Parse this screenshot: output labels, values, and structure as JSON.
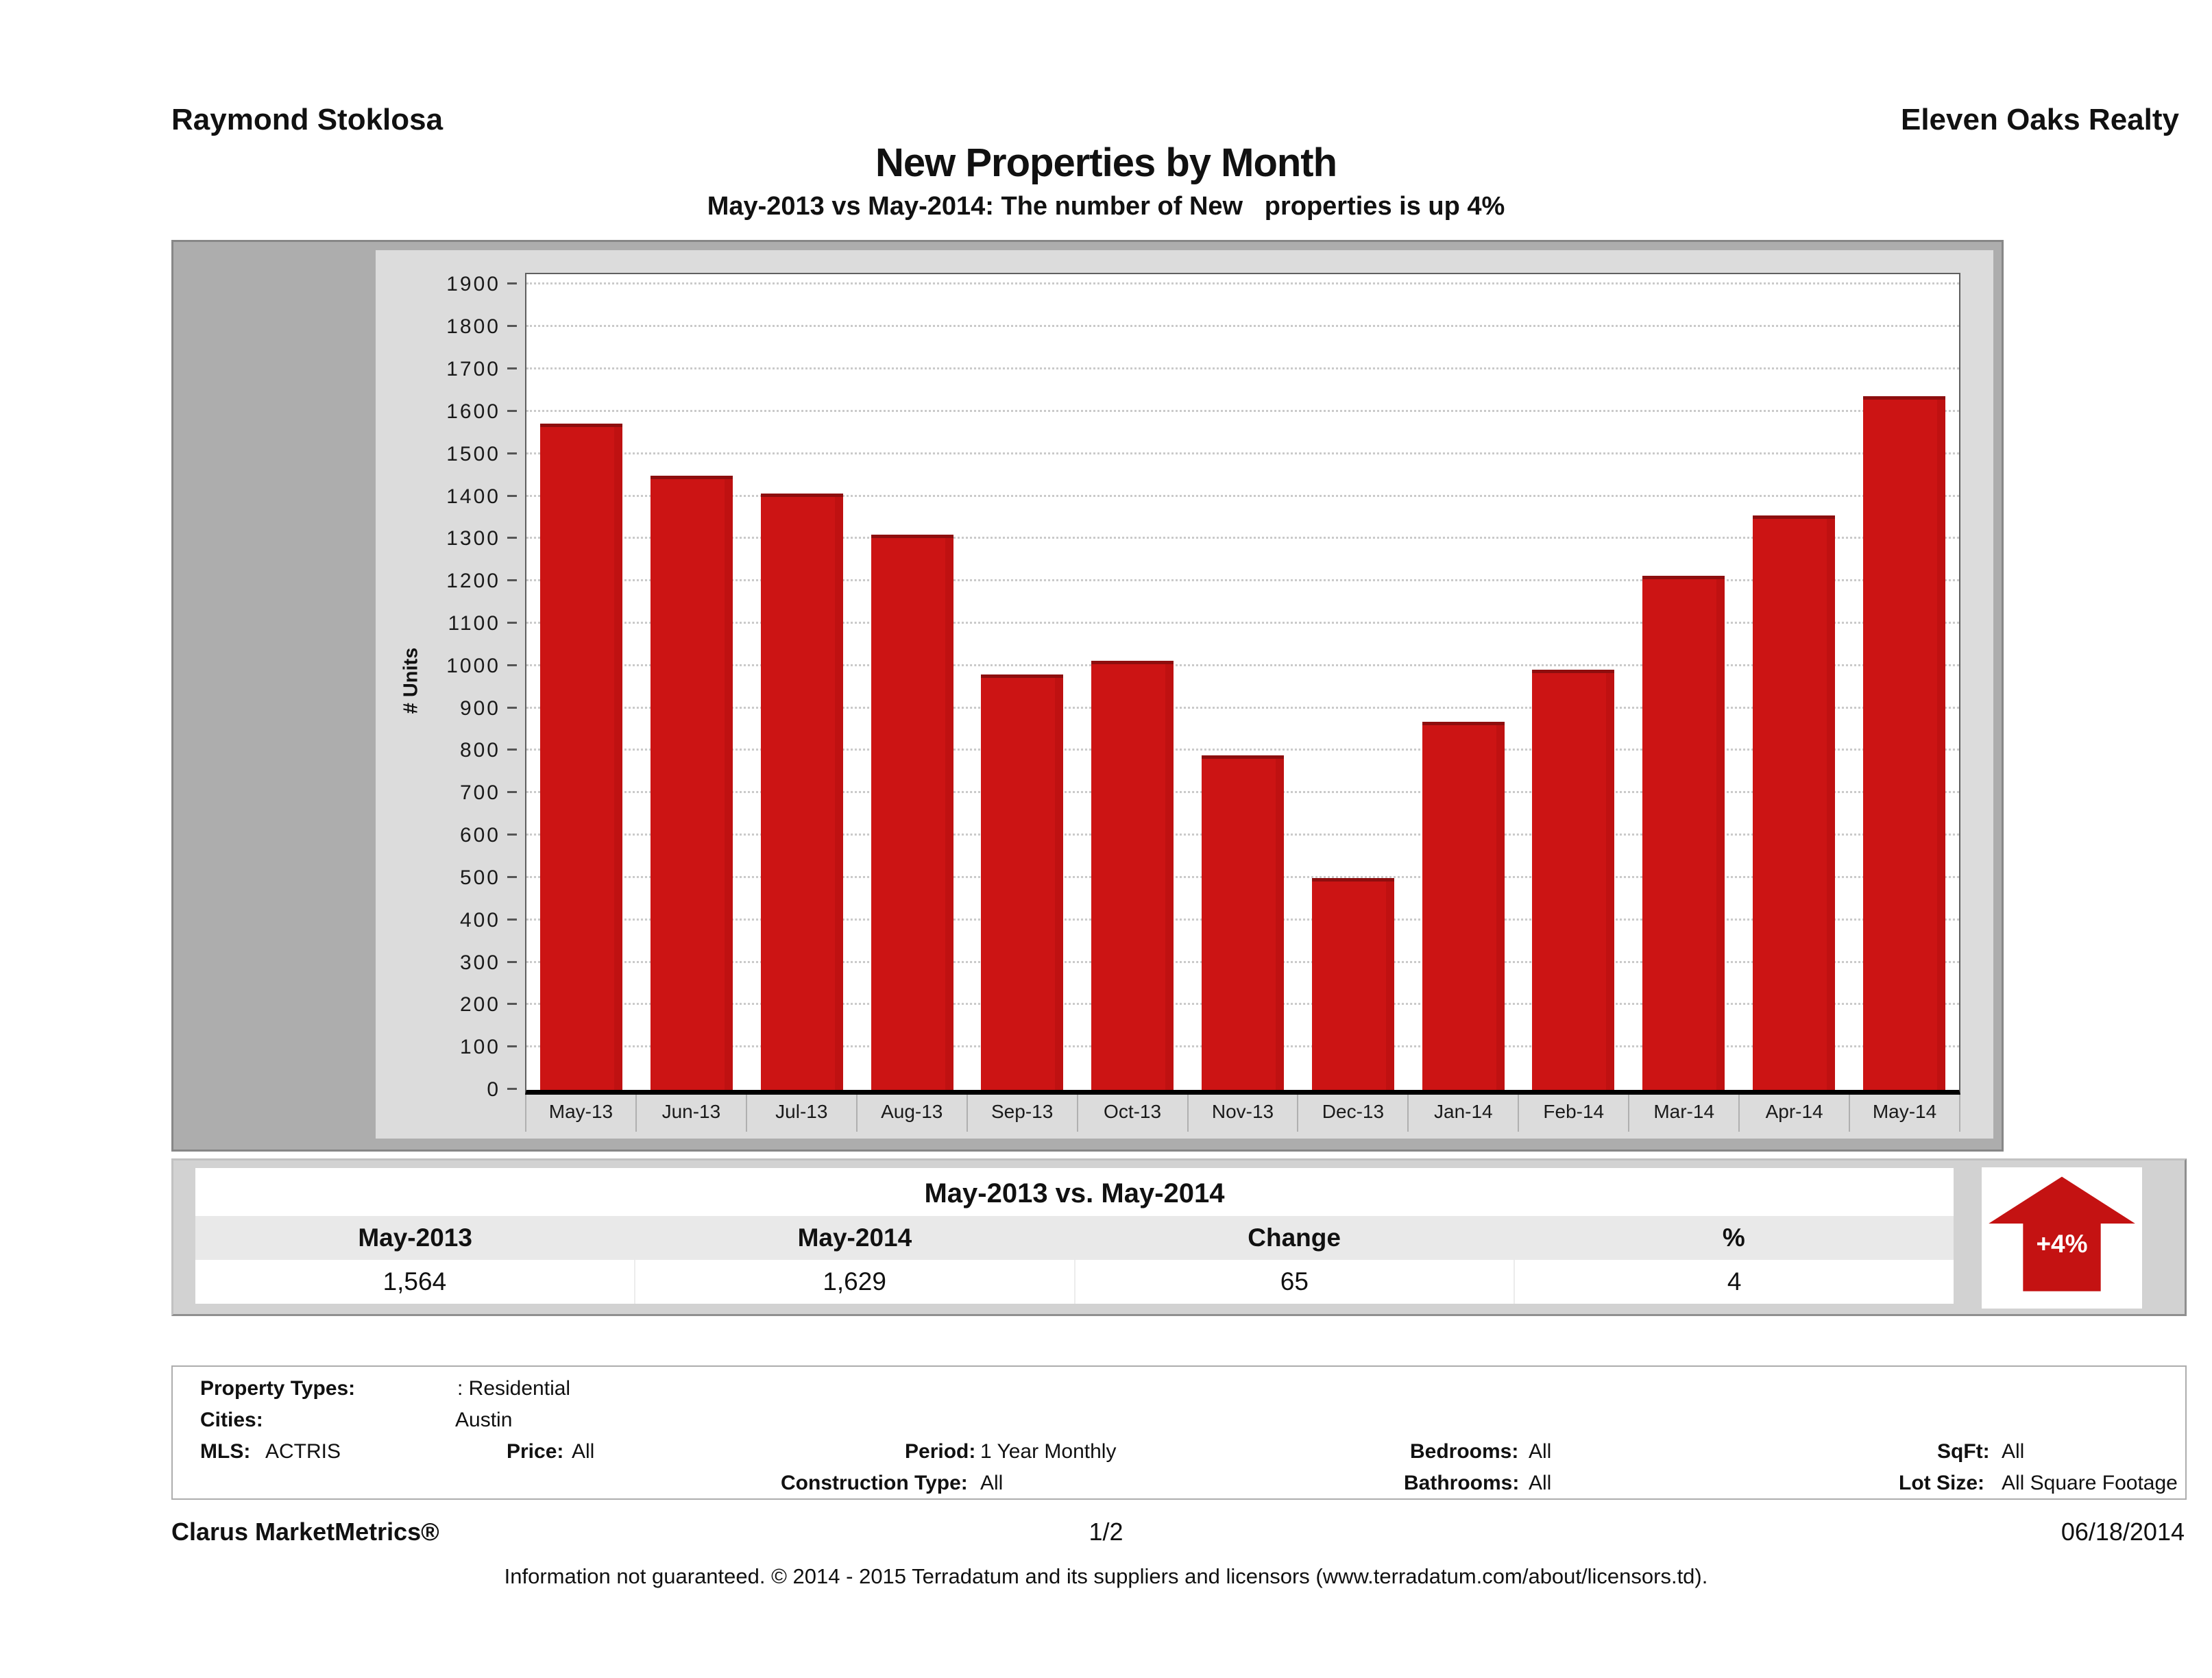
{
  "header": {
    "agent_name": "Raymond Stoklosa",
    "company_name": "Eleven Oaks Realty"
  },
  "title": "New Properties by Month",
  "subtitle": "May-2013 vs May-2014: The number of New   properties is up 4%",
  "chart_data": {
    "type": "bar",
    "title": "New Properties by Month",
    "xlabel": "",
    "ylabel": "# Units",
    "categories": [
      "May-13",
      "Jun-13",
      "Jul-13",
      "Aug-13",
      "Sep-13",
      "Oct-13",
      "Nov-13",
      "Dec-13",
      "Jan-14",
      "Feb-14",
      "Mar-14",
      "Apr-14",
      "May-14"
    ],
    "values": [
      1564,
      1442,
      1400,
      1302,
      972,
      1005,
      781,
      491,
      860,
      983,
      1205,
      1348,
      1629
    ],
    "ylim": [
      0,
      1900
    ],
    "ytick_step": 100,
    "grid": true,
    "legend": "none",
    "bar_color": "#cc1414"
  },
  "summary_table": {
    "title": "May-2013 vs. May-2014",
    "columns": [
      "May-2013",
      "May-2014",
      "Change",
      "%"
    ],
    "values": [
      "1,564",
      "1,629",
      "65",
      "4"
    ]
  },
  "change_badge": {
    "label": "+4%",
    "direction": "up",
    "color": "#c41212"
  },
  "criteria": {
    "property_types_label": "Property Types:",
    "property_types_value": ": Residential",
    "cities_label": "Cities:",
    "cities_value": "Austin",
    "mls_label": "MLS:",
    "mls_value": "ACTRIS",
    "price_label": "Price:",
    "price_value": "All",
    "period_label": "Period:",
    "period_value": "1 Year Monthly",
    "construction_label": "Construction Type:",
    "construction_value": "All",
    "bedrooms_label": "Bedrooms:",
    "bedrooms_value": "All",
    "bathrooms_label": "Bathrooms:",
    "bathrooms_value": "All",
    "sqft_label": "SqFt:",
    "sqft_value": "All",
    "lotsize_label": "Lot Size:",
    "lotsize_value": "All Square Footage"
  },
  "footer": {
    "brand": "Clarus MarketMetrics®",
    "page": "1/2",
    "date": "06/18/2014",
    "disclaimer": "Information not guaranteed. © 2014 - 2015 Terradatum and its suppliers and licensors (www.terradatum.com/about/licensors.td)."
  }
}
